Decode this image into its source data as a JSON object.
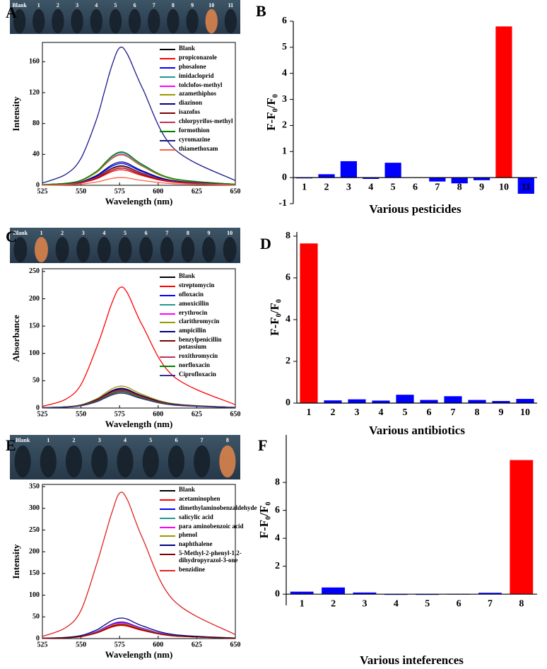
{
  "chart_data": [
    {
      "type": "line",
      "panel_label": "A",
      "image_labels": [
        "Blank",
        "1",
        "2",
        "3",
        "4",
        "5",
        "6",
        "7",
        "8",
        "9",
        "10",
        "11"
      ],
      "xlabel": "Wavelength (nm)",
      "ylabel": "Intensity",
      "x": [
        525,
        540,
        550,
        560,
        565,
        570,
        575,
        580,
        590,
        610,
        650
      ],
      "xlim": [
        525,
        650
      ],
      "xticks": [
        525,
        550,
        575,
        600,
        625,
        650
      ],
      "ylim": [
        0,
        185
      ],
      "yticks": [
        0,
        40,
        80,
        120,
        160
      ],
      "series": [
        {
          "name": "Blank",
          "color": "#000000",
          "values": [
            0.5,
            1.5,
            3.8,
            10.5,
            16.3,
            22,
            25,
            23.8,
            15.5,
            5,
            0.8
          ]
        },
        {
          "name": "propiconazole",
          "color": "#ff0000",
          "values": [
            0.4,
            1.2,
            3,
            8.4,
            13,
            17.6,
            20,
            19,
            12.4,
            4,
            0.6
          ]
        },
        {
          "name": "phosalone",
          "color": "#0000ff",
          "values": [
            0.6,
            1.7,
            4.2,
            11.8,
            18.2,
            24.6,
            28,
            26.6,
            17.4,
            5.6,
            0.8
          ]
        },
        {
          "name": "imidacloprid",
          "color": "#1a9a9a",
          "values": [
            0.8,
            2.5,
            6.3,
            17.6,
            27.3,
            37,
            42,
            39.9,
            26,
            8.4,
            1.3
          ]
        },
        {
          "name": "tolclofos-methyl",
          "color": "#ff00ff",
          "values": [
            0.8,
            2.4,
            6,
            16.8,
            26,
            35.2,
            40,
            38,
            24.8,
            8,
            1.2
          ]
        },
        {
          "name": "azamethiphos",
          "color": "#999900",
          "values": [
            0.8,
            2.3,
            5.9,
            16.4,
            25.4,
            34.3,
            39,
            37,
            24.2,
            7.8,
            1.2
          ]
        },
        {
          "name": "diazinon",
          "color": "#000080",
          "values": [
            0.6,
            1.8,
            4.5,
            12.6,
            19.5,
            26.4,
            30,
            28.5,
            18.6,
            6,
            0.9
          ]
        },
        {
          "name": "isazofos",
          "color": "#800000",
          "values": [
            0.4,
            1.3,
            3.3,
            9.2,
            14.3,
            19.4,
            22,
            20.9,
            13.6,
            4.4,
            0.7
          ]
        },
        {
          "name": "chlorpyrifos-methyl",
          "color": "#c03050",
          "values": [
            0.5,
            1.4,
            3.6,
            10.1,
            15.6,
            21.1,
            24,
            22.8,
            14.9,
            4.8,
            0.7
          ]
        },
        {
          "name": "formothion",
          "color": "#008000",
          "values": [
            0.9,
            2.6,
            6.5,
            18.1,
            28,
            37.8,
            43,
            40.9,
            26.7,
            8.6,
            1.3
          ]
        },
        {
          "name": "cyromazine",
          "color": "#1a1a8a",
          "values": [
            3,
            14,
            35,
            85,
            120,
            155,
            178,
            170,
            125,
            48,
            6
          ]
        },
        {
          "name": "thiamethoxam",
          "color": "#ff6040",
          "values": [
            0.2,
            0.6,
            1.5,
            4.2,
            6.5,
            8.8,
            10,
            9.5,
            6.2,
            2,
            0.3
          ]
        }
      ]
    },
    {
      "type": "bar",
      "panel_label": "B",
      "xlabel": "Various pesticides",
      "ylabel": "F-F₀/F₀",
      "categories": [
        "1",
        "2",
        "3",
        "4",
        "5",
        "6",
        "7",
        "8",
        "9",
        "10",
        "11"
      ],
      "values": [
        -0.03,
        0.13,
        0.63,
        -0.05,
        0.57,
        0.01,
        -0.15,
        -0.22,
        -0.1,
        5.8,
        -0.62
      ],
      "colors": [
        "#0000ff",
        "#0000ff",
        "#0000ff",
        "#0000ff",
        "#0000ff",
        "#0000ff",
        "#0000ff",
        "#0000ff",
        "#0000ff",
        "#ff0000",
        "#0000ff"
      ],
      "ylim": [
        -1,
        6
      ],
      "yticks": [
        -1,
        0,
        1,
        2,
        3,
        4,
        5,
        6
      ]
    },
    {
      "type": "line",
      "panel_label": "C",
      "image_labels": [
        "Blank",
        "1",
        "2",
        "3",
        "4",
        "5",
        "6",
        "7",
        "8",
        "9",
        "10"
      ],
      "xlabel": "Wavelength (nm)",
      "ylabel": "Absorbance",
      "x": [
        525,
        540,
        550,
        560,
        565,
        570,
        575,
        580,
        590,
        610,
        650
      ],
      "xlim": [
        525,
        650
      ],
      "xticks": [
        525,
        550,
        575,
        600,
        625,
        650
      ],
      "ylim": [
        0,
        255
      ],
      "yticks": [
        0,
        50,
        100,
        150,
        200,
        250
      ],
      "series": [
        {
          "name": "Blank",
          "color": "#000000",
          "values": [
            0.6,
            1.9,
            4.8,
            13.4,
            20.8,
            28.2,
            32,
            30.4,
            19.8,
            6.4,
            1
          ]
        },
        {
          "name": "streptomycin",
          "color": "#ff0000",
          "values": [
            3,
            16,
            43,
            110,
            150,
            192,
            220,
            211,
            150,
            58,
            6
          ]
        },
        {
          "name": "ofloxacin",
          "color": "#0000ff",
          "values": [
            0.7,
            2.1,
            5.3,
            14.7,
            22.8,
            30.8,
            35,
            33.3,
            21.7,
            7,
            1.1
          ]
        },
        {
          "name": "amoxicillin",
          "color": "#1a9a9a",
          "values": [
            0.7,
            2,
            5,
            13.9,
            21.5,
            29,
            33,
            31.4,
            20.5,
            6.6,
            1
          ]
        },
        {
          "name": "erythrocin",
          "color": "#ff00ff",
          "values": [
            0.6,
            1.8,
            4.5,
            12.6,
            19.5,
            26.4,
            30,
            28.5,
            18.6,
            6,
            0.9
          ]
        },
        {
          "name": "clarithromycin",
          "color": "#999900",
          "values": [
            0.8,
            2.4,
            6,
            16.8,
            26,
            35.2,
            40,
            38,
            24.8,
            8,
            1.2
          ]
        },
        {
          "name": "ampicillin",
          "color": "#000080",
          "values": [
            0.7,
            2.2,
            5.4,
            15.1,
            23.4,
            31.7,
            36,
            34.2,
            22.3,
            7.2,
            1.1
          ]
        },
        {
          "name": "benzylpenicillin potassium",
          "color": "#800000",
          "values": [
            0.7,
            2,
            5.1,
            14.3,
            22.1,
            29.9,
            34,
            32.3,
            21.1,
            6.8,
            1
          ]
        },
        {
          "name": "roxithromycin",
          "color": "#c03050",
          "values": [
            0.6,
            1.9,
            4.7,
            13,
            20.2,
            27.3,
            31,
            29.5,
            19.2,
            6.2,
            0.9
          ]
        },
        {
          "name": "norfloxacin",
          "color": "#008000",
          "values": [
            0.6,
            1.7,
            4.4,
            12.2,
            18.9,
            25.5,
            29,
            27.6,
            18,
            5.8,
            0.9
          ]
        },
        {
          "name": "Ciprofloxacin",
          "color": "#303090",
          "values": [
            0.5,
            1.6,
            4.1,
            11.3,
            17.6,
            23.8,
            27,
            25.7,
            16.7,
            5.4,
            0.8
          ]
        }
      ]
    },
    {
      "type": "bar",
      "panel_label": "D",
      "xlabel": "Various antibiotics",
      "ylabel": "F-F₀/F₀",
      "categories": [
        "1",
        "2",
        "3",
        "4",
        "5",
        "6",
        "7",
        "8",
        "9",
        "10"
      ],
      "values": [
        7.65,
        0.13,
        0.18,
        0.12,
        0.4,
        0.15,
        0.33,
        0.15,
        0.1,
        0.2
      ],
      "colors": [
        "#ff0000",
        "#0000ff",
        "#0000ff",
        "#0000ff",
        "#0000ff",
        "#0000ff",
        "#0000ff",
        "#0000ff",
        "#0000ff",
        "#0000ff"
      ],
      "ylim": [
        0,
        8.2
      ],
      "yticks": [
        0,
        2,
        4,
        6,
        8
      ]
    },
    {
      "type": "line",
      "panel_label": "E",
      "image_labels": [
        "Blank",
        "1",
        "2",
        "3",
        "4",
        "5",
        "6",
        "7",
        "8"
      ],
      "xlabel": "Wavelength (nm)",
      "ylabel": "Intensity",
      "x": [
        525,
        540,
        550,
        560,
        565,
        570,
        575,
        580,
        590,
        610,
        650
      ],
      "xlim": [
        525,
        650
      ],
      "xticks": [
        525,
        550,
        575,
        600,
        625,
        650
      ],
      "ylim": [
        0,
        355
      ],
      "yticks": [
        0,
        50,
        100,
        150,
        200,
        250,
        300,
        350
      ],
      "series": [
        {
          "name": "Blank",
          "color": "#000000",
          "values": [
            0.7,
            2.1,
            5.3,
            14.7,
            22.8,
            30.8,
            35,
            33.3,
            21.7,
            7,
            1.1
          ]
        },
        {
          "name": "acetaminophen",
          "color": "#ff0000",
          "values": [
            0.6,
            1.8,
            4.5,
            12.6,
            19.5,
            26.4,
            30,
            28.5,
            18.6,
            6,
            0.9
          ]
        },
        {
          "name": "dimethylaminobenzaldehyde",
          "color": "#0000ff",
          "values": [
            0.8,
            2.3,
            5.7,
            16,
            24.7,
            33.4,
            38,
            36.1,
            23.6,
            7.6,
            1.1
          ]
        },
        {
          "name": "salicylic acid",
          "color": "#1a9a9a",
          "values": [
            0.7,
            2,
            5,
            13.9,
            21.5,
            29,
            33,
            31.4,
            20.5,
            6.6,
            1
          ]
        },
        {
          "name": "para aminobenzoic acid",
          "color": "#ff00ff",
          "values": [
            0.7,
            2.2,
            5.4,
            15.1,
            23.4,
            31.7,
            36,
            34.2,
            22.3,
            7.2,
            1.1
          ]
        },
        {
          "name": "phenol",
          "color": "#999900",
          "values": [
            0.7,
            2,
            5.1,
            14.3,
            22.1,
            29.9,
            34,
            32.3,
            21.1,
            6.8,
            1
          ]
        },
        {
          "name": "naphthalene",
          "color": "#000080",
          "values": [
            0.9,
            2.8,
            7.1,
            19.7,
            30.6,
            41.4,
            47,
            44.7,
            29.1,
            9.4,
            1.4
          ]
        },
        {
          "name": "5-Methyl-2-phenyl-1,2-dihydropyrazol-3-one",
          "color": "#800000",
          "values": [
            0.6,
            1.9,
            4.8,
            13.4,
            20.8,
            28.2,
            32,
            30.4,
            19.8,
            6.4,
            1
          ]
        },
        {
          "name": "benzidine",
          "color": "#e02020",
          "values": [
            5,
            25,
            65,
            170,
            230,
            290,
            335,
            320,
            230,
            88,
            9
          ]
        }
      ]
    },
    {
      "type": "bar",
      "panel_label": "F",
      "xlabel": "Various inteferences",
      "ylabel": "F-F₀/F₀",
      "categories": [
        "1",
        "2",
        "3",
        "4",
        "5",
        "6",
        "7",
        "8"
      ],
      "values": [
        0.18,
        0.48,
        0.12,
        -0.05,
        -0.05,
        -0.03,
        0.1,
        9.6
      ],
      "colors": [
        "#0000ff",
        "#0000ff",
        "#0000ff",
        "#0000ff",
        "#0000ff",
        "#0000ff",
        "#0000ff",
        "#ff0000"
      ],
      "ylim": [
        -0.8,
        11.4
      ],
      "yticks": [
        0,
        2,
        4,
        6,
        8
      ]
    }
  ]
}
